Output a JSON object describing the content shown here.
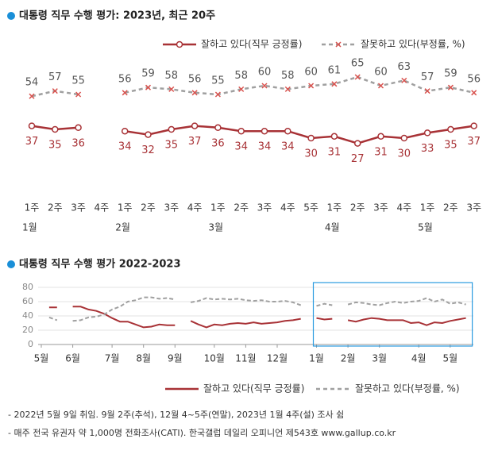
{
  "chart_data": [
    {
      "type": "line",
      "title": "대통령 직무 수행 평가: 2023년, 최근 20주",
      "months": [
        {
          "name": "1월",
          "weeks": [
            "1주",
            "2주",
            "3주",
            "4주"
          ]
        },
        {
          "name": "2월",
          "weeks": [
            "1주",
            "2주",
            "3주",
            "4주"
          ]
        },
        {
          "name": "3월",
          "weeks": [
            "1주",
            "2주",
            "3주",
            "4주",
            "5주"
          ]
        },
        {
          "name": "4월",
          "weeks": [
            "1주",
            "2주",
            "3주",
            "4주"
          ]
        },
        {
          "name": "5월",
          "weeks": [
            "1주",
            "2주",
            "3주"
          ]
        }
      ],
      "series": [
        {
          "name": "잘하고 있다(직무 긍정률)",
          "color": "#a83236",
          "dashed": false,
          "marker": "circle",
          "values": [
            37,
            35,
            36,
            null,
            34,
            32,
            35,
            37,
            36,
            34,
            34,
            34,
            30,
            31,
            27,
            31,
            30,
            33,
            35,
            37
          ]
        },
        {
          "name": "잘못하고 있다(부정률, %)",
          "color": "#a0a0a0",
          "dashed": true,
          "marker": "x",
          "values": [
            54,
            57,
            55,
            null,
            56,
            59,
            58,
            56,
            55,
            58,
            60,
            58,
            60,
            61,
            65,
            60,
            63,
            57,
            59,
            56
          ]
        }
      ]
    },
    {
      "type": "line",
      "title": "대통령 직무 수행 평가 2022-2023",
      "categories": [
        "5월",
        null,
        null,
        null,
        "6월",
        null,
        null,
        null,
        null,
        "7월",
        null,
        null,
        null,
        "8월",
        null,
        null,
        null,
        "9월",
        null,
        null,
        null,
        null,
        "10월",
        null,
        null,
        null,
        "11월",
        null,
        null,
        null,
        "12월",
        null,
        null,
        null,
        null,
        "1월",
        null,
        null,
        null,
        "2월",
        null,
        null,
        null,
        "3월",
        null,
        null,
        null,
        null,
        "4월",
        null,
        null,
        null,
        "5월",
        null,
        null
      ],
      "ylim": [
        0,
        80
      ],
      "yticks": [
        0,
        20,
        40,
        60,
        80
      ],
      "grid": true,
      "series": [
        {
          "name": "잘하고 있다(직무 긍정률)",
          "color": "#a83236",
          "dashed": false,
          "values": [
            null,
            52,
            52,
            null,
            53,
            53,
            49,
            47,
            43,
            37,
            32,
            32,
            28,
            24,
            25,
            28,
            27,
            27,
            null,
            33,
            28,
            24,
            28,
            27,
            29,
            30,
            29,
            31,
            29,
            30,
            31,
            33,
            34,
            36,
            null,
            37,
            35,
            36,
            null,
            34,
            32,
            35,
            37,
            36,
            34,
            34,
            34,
            30,
            31,
            27,
            31,
            30,
            33,
            35,
            37
          ]
        },
        {
          "name": "잘못하고 있다(부정률, %)",
          "color": "#a0a0a0",
          "dashed": true,
          "values": [
            null,
            38,
            34,
            null,
            33,
            34,
            38,
            39,
            42,
            49,
            53,
            60,
            62,
            66,
            66,
            64,
            65,
            63,
            null,
            59,
            61,
            65,
            63,
            64,
            63,
            64,
            62,
            61,
            62,
            60,
            60,
            61,
            59,
            55,
            null,
            54,
            57,
            55,
            null,
            56,
            59,
            58,
            56,
            55,
            58,
            60,
            58,
            60,
            61,
            65,
            60,
            63,
            57,
            59,
            56
          ]
        }
      ]
    }
  ],
  "notes": [
    "- 2022년 5월 9일 취임. 9월 2주(추석), 12월 4~5주(연말), 2023년 1월 4주(설) 조사 쉼",
    "- 매주 전국 유권자 약 1,000명 전화조사(CATI). 한국갤럽 데일리 오피니언 제543호 www.gallup.co.kr"
  ]
}
